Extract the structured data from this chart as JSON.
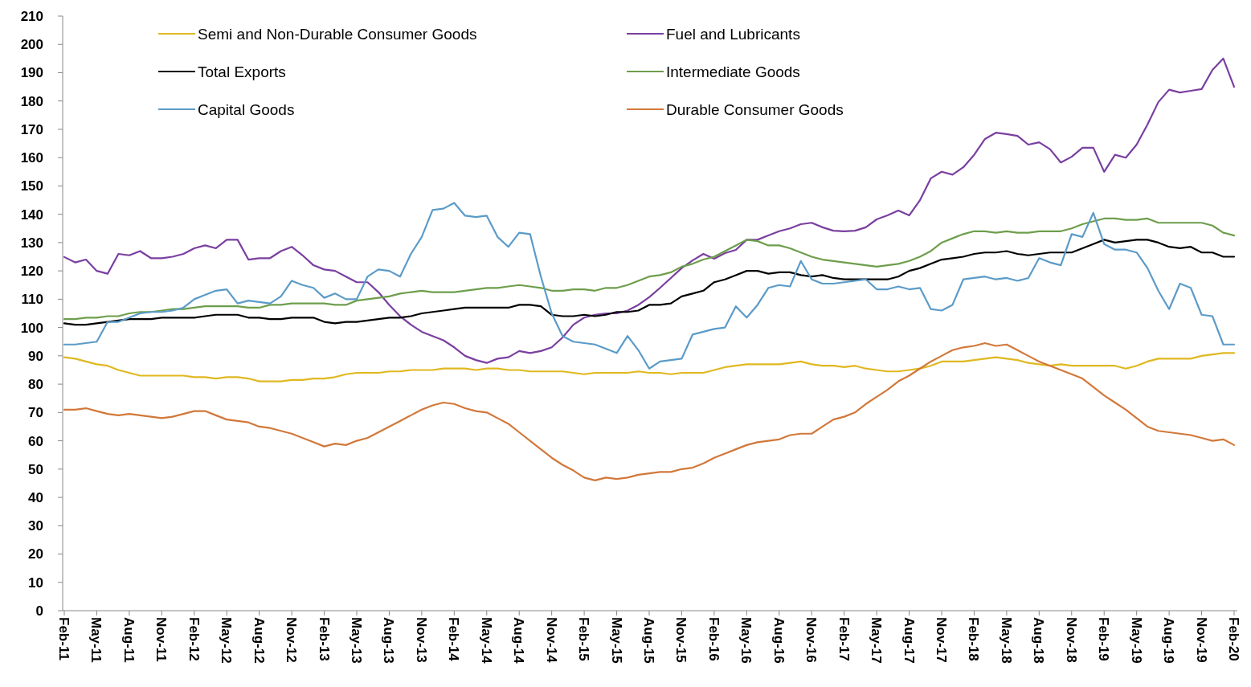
{
  "chart_data": {
    "type": "line",
    "categories": [
      "Feb-11",
      null,
      null,
      "May-11",
      null,
      null,
      "Aug-11",
      null,
      null,
      "Nov-11",
      null,
      null,
      "Feb-12",
      null,
      null,
      "May-12",
      null,
      null,
      "Aug-12",
      null,
      null,
      "Nov-12",
      null,
      null,
      "Feb-13",
      null,
      null,
      "May-13",
      null,
      null,
      "Aug-13",
      null,
      null,
      "Nov-13",
      null,
      null,
      "Feb-14",
      null,
      null,
      "May-14",
      null,
      null,
      "Aug-14",
      null,
      null,
      "Nov-14",
      null,
      null,
      "Feb-15",
      null,
      null,
      "May-15",
      null,
      null,
      "Aug-15",
      null,
      null,
      "Nov-15",
      null,
      null,
      "Feb-16",
      null,
      null,
      "May-16",
      null,
      null,
      "Aug-16",
      null,
      null,
      "Nov-16",
      null,
      null,
      "Feb-17",
      null,
      null,
      "May-17",
      null,
      null,
      "Aug-17",
      null,
      null,
      "Nov-17",
      null,
      null,
      "Feb-18",
      null,
      null,
      "May-18",
      null,
      null,
      "Aug-18",
      null,
      null,
      "Nov-18",
      null,
      null,
      "Feb-19",
      null,
      null,
      "May-19",
      null,
      null,
      "Aug-19",
      null,
      null,
      "Nov-19",
      null,
      null,
      "Feb-20"
    ],
    "series": [
      {
        "name": "Semi and Non-Durable Consumer Goods",
        "color": "#e0b820",
        "values": [
          89.5,
          89,
          88,
          87,
          86.5,
          85,
          84,
          83,
          83,
          83,
          83,
          83,
          82.5,
          82.5,
          82,
          82.5,
          82.5,
          82,
          81,
          81,
          81,
          81.5,
          81.5,
          82,
          82,
          82.5,
          83.5,
          84,
          84,
          84,
          84.5,
          84.5,
          85,
          85,
          85,
          85.5,
          85.5,
          85.5,
          85,
          85.5,
          85.5,
          85,
          85,
          84.5,
          84.5,
          84.5,
          84.5,
          84,
          83.5,
          84,
          84,
          84,
          84,
          84.5,
          84,
          84,
          83.5,
          84,
          84,
          84,
          85,
          86,
          86.5,
          87,
          87,
          87,
          87,
          87.5,
          88,
          87,
          86.5,
          86.5,
          86,
          86.5,
          85.5,
          85,
          84.5,
          84.5,
          85,
          85.5,
          86.5,
          88,
          88,
          88,
          88.5,
          89,
          89.5,
          89,
          88.5,
          87.5,
          87,
          86.5,
          87,
          86.5,
          86.5,
          86.5,
          86.5,
          86.5,
          85.5,
          86.5,
          88,
          89,
          89,
          89,
          89,
          90,
          90.5,
          91,
          91
        ]
      },
      {
        "name": "Fuel and Lubricants",
        "color": "#7a3fa0",
        "values": [
          124.9,
          123,
          124,
          120,
          119,
          126,
          125.5,
          127,
          124.5,
          124.5,
          125,
          126,
          128,
          129,
          128,
          131,
          131,
          124,
          124.5,
          124.5,
          127,
          128.5,
          125.5,
          122,
          120.5,
          120,
          118,
          116,
          116,
          112.5,
          108,
          104,
          101,
          98.5,
          97,
          95.5,
          93,
          90,
          88.5,
          87.5,
          89,
          89.5,
          91.7,
          91,
          91.7,
          93,
          96.5,
          101,
          103.5,
          104.5,
          105,
          105,
          106,
          108,
          110.7,
          114,
          117.5,
          121,
          123.7,
          126,
          124.3,
          126.3,
          127.4,
          131,
          131,
          132.5,
          134,
          135,
          136.5,
          137,
          135.4,
          134.2,
          134,
          134.2,
          135.4,
          138.2,
          139.6,
          141.3,
          139.6,
          145,
          152.7,
          155,
          154,
          156.6,
          161,
          166.6,
          168.8,
          168.3,
          167.7,
          164.6,
          165.4,
          163,
          158.3,
          160.3,
          163.5,
          163.5,
          155,
          161,
          160,
          164.6,
          171.7,
          179.6,
          184,
          183,
          183.6,
          184.2,
          191,
          195,
          185
        ]
      },
      {
        "name": "Total Exports",
        "color": "#000000",
        "values": [
          101.5,
          101,
          101,
          101.5,
          102,
          102.5,
          103,
          103,
          103,
          103.5,
          103.5,
          103.5,
          103.5,
          104,
          104.5,
          104.5,
          104.5,
          103.5,
          103.5,
          103,
          103,
          103.5,
          103.5,
          103.5,
          102,
          101.5,
          102,
          102,
          102.5,
          103,
          103.5,
          103.5,
          104,
          105,
          105.5,
          106,
          106.5,
          107,
          107,
          107,
          107,
          107,
          108,
          108,
          107.5,
          104.5,
          104,
          104,
          104.5,
          104,
          104.5,
          105.5,
          105.5,
          106,
          108,
          108,
          108.5,
          111,
          112,
          113,
          116,
          117,
          118.5,
          120,
          120,
          119,
          119.5,
          119.5,
          118.5,
          118,
          118.5,
          117.5,
          117,
          117,
          117,
          117,
          117,
          118,
          120,
          121,
          122.5,
          124,
          124.5,
          125,
          126,
          126.5,
          126.5,
          127,
          126,
          125.5,
          126,
          126.5,
          126.5,
          126.5,
          128,
          129.5,
          131,
          130,
          130.5,
          131,
          131,
          130,
          128.5,
          128,
          128.5,
          126.5,
          126.5,
          125,
          125
        ]
      },
      {
        "name": "Intermediate Goods",
        "color": "#6e9e4c",
        "values": [
          103,
          103,
          103.5,
          103.5,
          104,
          104,
          105,
          105.5,
          105.5,
          106,
          106.5,
          106.5,
          107,
          107.5,
          107.5,
          107.5,
          107.5,
          107,
          107,
          108,
          108,
          108.5,
          108.5,
          108.5,
          108.5,
          108,
          108,
          109.5,
          110,
          110.5,
          111,
          112,
          112.5,
          113,
          112.5,
          112.5,
          112.5,
          113,
          113.5,
          114,
          114,
          114.5,
          115,
          114.5,
          114,
          113,
          113,
          113.5,
          113.5,
          113,
          114,
          114,
          115,
          116.5,
          118,
          118.5,
          119.5,
          121.5,
          122.5,
          124,
          125,
          127,
          129,
          131,
          130.5,
          129,
          129,
          128,
          126.5,
          125,
          124,
          123.5,
          123,
          122.5,
          122,
          121.5,
          122,
          122.5,
          123.5,
          125,
          127,
          130,
          131.5,
          133,
          134,
          134,
          133.5,
          134,
          133.5,
          133.5,
          134,
          134,
          134,
          135,
          136.5,
          137.5,
          138.5,
          138.5,
          138,
          138,
          138.5,
          137,
          137,
          137,
          137,
          137,
          136,
          133.5,
          132.5
        ]
      },
      {
        "name": "Capital Goods",
        "color": "#5b9bc8",
        "values": [
          94,
          94,
          94.5,
          95,
          102,
          102,
          103.5,
          105,
          105.5,
          105.5,
          106,
          107,
          110,
          111.5,
          113,
          113.5,
          108.5,
          109.5,
          109,
          108.5,
          111,
          116.5,
          115,
          114,
          110.5,
          112,
          110,
          110,
          118,
          120.5,
          120,
          118,
          126,
          132,
          141.5,
          142,
          144,
          139.5,
          139,
          139.5,
          132,
          128.5,
          133.5,
          133,
          118,
          105,
          97,
          95,
          94.5,
          94,
          92.5,
          91,
          97,
          92,
          85.5,
          88,
          88.5,
          89,
          97.5,
          98.5,
          99.5,
          100,
          107.5,
          103.5,
          108,
          114,
          115,
          114.5,
          123.5,
          117,
          115.5,
          115.5,
          116,
          116.5,
          117,
          113.5,
          113.5,
          114.5,
          113.5,
          114,
          106.5,
          106,
          108,
          117,
          117.5,
          118,
          117,
          117.5,
          116.5,
          117.5,
          124.5,
          123,
          122,
          133,
          132,
          140.5,
          129.5,
          127.5,
          127.5,
          126.5,
          121,
          113,
          106.5,
          115.5,
          114,
          104.5,
          104,
          94,
          94
        ]
      },
      {
        "name": "Durable Consumer Goods",
        "color": "#d2783a",
        "values": [
          71,
          71,
          71.5,
          70.5,
          69.5,
          69,
          69.5,
          69,
          68.5,
          68,
          68.5,
          69.5,
          70.5,
          70.5,
          69,
          67.5,
          67,
          66.5,
          65,
          64.5,
          63.5,
          62.5,
          61,
          59.5,
          58,
          59,
          58.5,
          60,
          61,
          63,
          65,
          67,
          69,
          71,
          72.5,
          73.5,
          73,
          71.5,
          70.5,
          70,
          68,
          66,
          63,
          60,
          57,
          54,
          51.5,
          49.5,
          47,
          46,
          47,
          46.5,
          47,
          48,
          48.5,
          49,
          49,
          50,
          50.5,
          52,
          54,
          55.5,
          57,
          58.5,
          59.5,
          60,
          60.5,
          62,
          62.5,
          62.5,
          65,
          67.5,
          68.5,
          70,
          73,
          75.5,
          78,
          81,
          83,
          85.5,
          88,
          90,
          92,
          93,
          93.5,
          94.5,
          93.5,
          94,
          92,
          90,
          88,
          86.5,
          85,
          83.5,
          82,
          79,
          76,
          73.5,
          71,
          68,
          65,
          63.5,
          63,
          62.5,
          62,
          61,
          60,
          60.5,
          58.5
        ]
      }
    ],
    "ylim": [
      0,
      210
    ],
    "yticks": [
      0,
      10,
      20,
      30,
      40,
      50,
      60,
      70,
      80,
      90,
      100,
      110,
      120,
      130,
      140,
      150,
      160,
      170,
      180,
      190,
      200,
      210
    ],
    "grid": false,
    "legend": "top",
    "marker": "none",
    "line_style": "solid"
  }
}
